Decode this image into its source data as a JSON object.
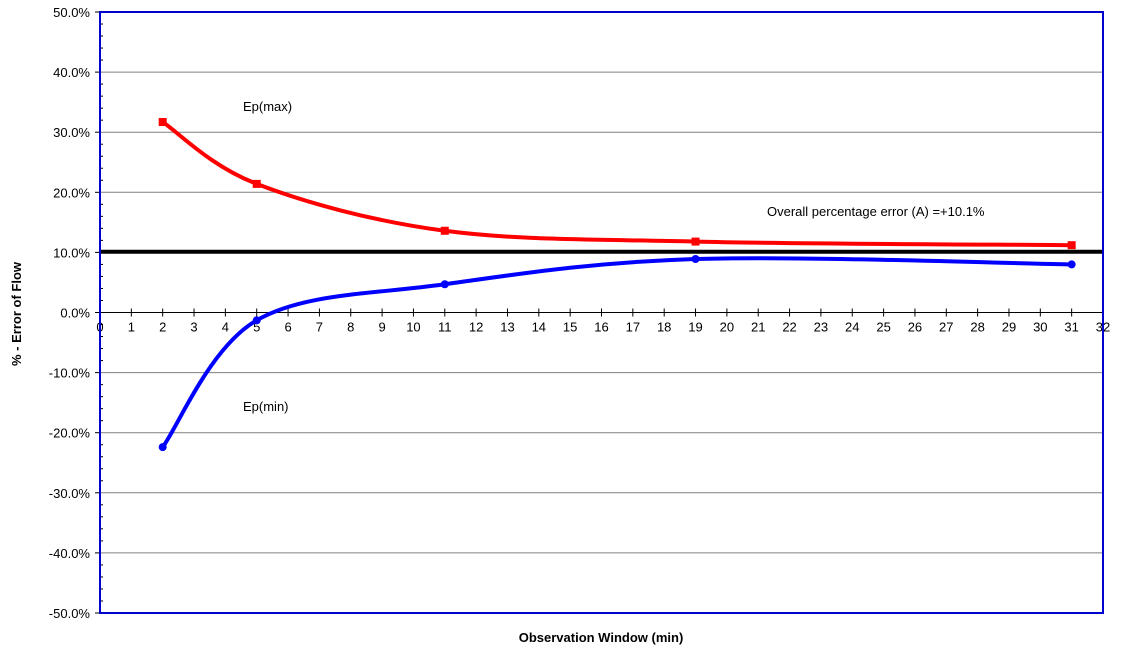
{
  "chart_data": {
    "type": "line",
    "xlabel": "Observation Window (min)",
    "ylabel": "% - Error of Flow",
    "xlim": [
      0,
      32
    ],
    "ylim": [
      -50,
      50
    ],
    "x_ticks": [
      "0",
      "1",
      "2",
      "3",
      "4",
      "5",
      "6",
      "7",
      "8",
      "9",
      "10",
      "11",
      "12",
      "13",
      "14",
      "15",
      "16",
      "17",
      "18",
      "19",
      "20",
      "21",
      "22",
      "23",
      "24",
      "25",
      "26",
      "27",
      "28",
      "29",
      "30",
      "31",
      "32"
    ],
    "y_ticks": [
      "50.0%",
      "40.0%",
      "30.0%",
      "20.0%",
      "10.0%",
      "0.0%",
      "-10.0%",
      "-20.0%",
      "-30.0%",
      "-40.0%",
      "-50.0%"
    ],
    "y_tick_values": [
      50,
      40,
      30,
      20,
      10,
      0,
      -10,
      -20,
      -30,
      -40,
      -50
    ],
    "grid": "horizontal",
    "reference_line": {
      "y": 10.1,
      "color": "#000000"
    },
    "series": [
      {
        "name": "Ep(max)",
        "color": "#ff0000",
        "marker": "square",
        "x": [
          2,
          5,
          11,
          19,
          31
        ],
        "values": [
          31.7,
          21.4,
          13.6,
          11.8,
          11.2
        ]
      },
      {
        "name": "Ep(min)",
        "color": "#0000ff",
        "marker": "circle",
        "x": [
          2,
          5,
          11,
          19,
          31
        ],
        "values": [
          -22.4,
          -1.3,
          4.7,
          8.9,
          8.0
        ]
      }
    ],
    "annotations": {
      "ep_max": "Ep(max)",
      "ep_min": "Ep(min)",
      "overall": "Overall percentage error (A) =+10.1%"
    },
    "border_color": "#0000cc"
  }
}
